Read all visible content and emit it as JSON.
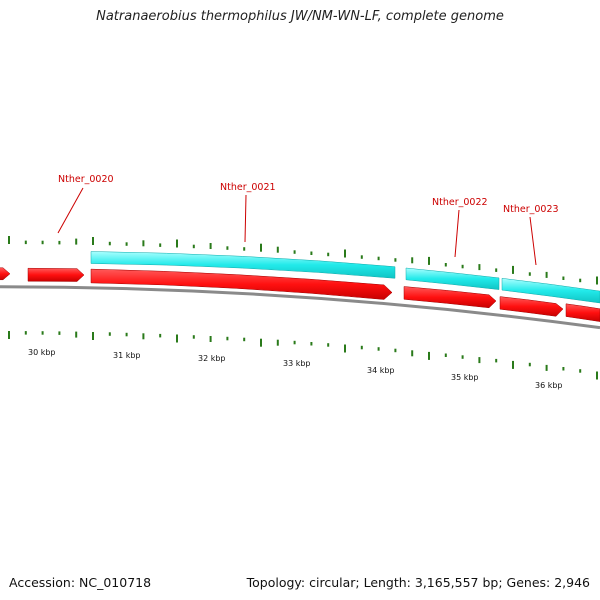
{
  "title": "Natranaerobius thermophilus JW/NM-WN-LF, complete genome",
  "footer": {
    "accession": "Accession: NC_010718",
    "stats": "Topology: circular; Length: 3,165,557 bp; Genes: 2,946"
  },
  "scale_labels": [
    "30 kbp",
    "31 kbp",
    "32 kbp",
    "33 kbp",
    "34 kbp",
    "35 kbp",
    "36 kbp"
  ],
  "gene_labels": [
    "Nther_0020",
    "Nther_0021",
    "Nther_0022",
    "Nther_0023"
  ],
  "colors": {
    "forward_gene": "#ff1a1a",
    "cds_feature": "#33eeee",
    "backbone": "#8a8a8a",
    "gc_skew": "#2a7a1a",
    "label": "#cc0000"
  }
}
